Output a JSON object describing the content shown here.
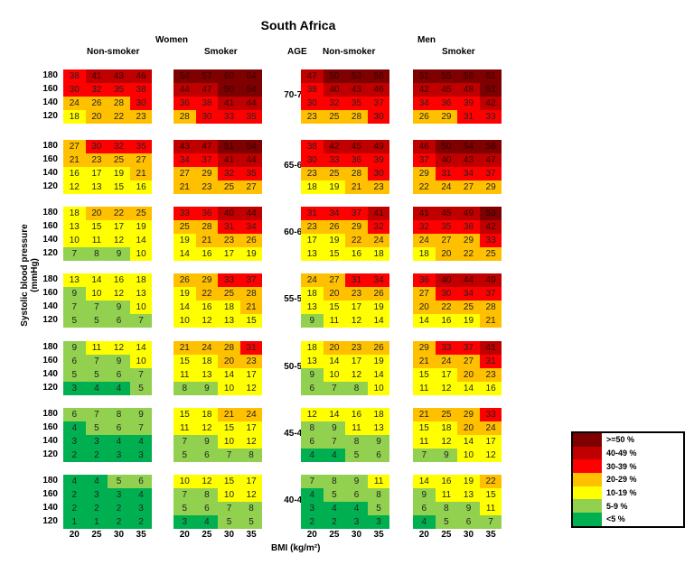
{
  "chart_data": {
    "type": "heatmap",
    "title": "South Africa",
    "group_labels": {
      "women": "Women",
      "men": "Men"
    },
    "panel_labels": [
      "Non-smoker",
      "Smoker",
      "Non-smoker",
      "Smoker"
    ],
    "age_header": "AGE",
    "ylabel": "Systolic blood pressure (mmHg)",
    "xlabel": "BMI (kg/m²)",
    "sbp_ticks": [
      "180",
      "160",
      "140",
      "120"
    ],
    "bmi_ticks": [
      "20",
      "25",
      "30",
      "35"
    ],
    "legend": [
      {
        "label": ">=50 %",
        "color": "#7f0000"
      },
      {
        "label": "40-49 %",
        "color": "#c00000"
      },
      {
        "label": "30-39 %",
        "color": "#ff0000"
      },
      {
        "label": "20-29 %",
        "color": "#ffc000"
      },
      {
        "label": "10-19 %",
        "color": "#ffff00"
      },
      {
        "label": "5-9 %",
        "color": "#92d050"
      },
      {
        "label": "<5 %",
        "color": "#00b050"
      }
    ],
    "bands": [
      {
        "age": "70-74",
        "panels": [
          [
            [
              38,
              41,
              43,
              46
            ],
            [
              30,
              32,
              35,
              38
            ],
            [
              24,
              26,
              28,
              30
            ],
            [
              18,
              20,
              22,
              23
            ]
          ],
          [
            [
              54,
              57,
              60,
              64
            ],
            [
              44,
              47,
              50,
              54
            ],
            [
              36,
              38,
              41,
              44
            ],
            [
              28,
              30,
              33,
              35
            ]
          ],
          [
            [
              47,
              50,
              53,
              56
            ],
            [
              38,
              40,
              43,
              46
            ],
            [
              30,
              32,
              35,
              37
            ],
            [
              23,
              25,
              28,
              30
            ]
          ],
          [
            [
              51,
              55,
              58,
              61
            ],
            [
              42,
              45,
              48,
              51
            ],
            [
              34,
              36,
              39,
              42
            ],
            [
              26,
              29,
              31,
              33
            ]
          ]
        ]
      },
      {
        "age": "65-69",
        "panels": [
          [
            [
              27,
              30,
              32,
              35
            ],
            [
              21,
              23,
              25,
              27
            ],
            [
              16,
              17,
              19,
              21
            ],
            [
              12,
              13,
              15,
              16
            ]
          ],
          [
            [
              43,
              47,
              51,
              54
            ],
            [
              34,
              37,
              41,
              44
            ],
            [
              27,
              29,
              32,
              35
            ],
            [
              21,
              23,
              25,
              27
            ]
          ],
          [
            [
              38,
              42,
              45,
              49
            ],
            [
              30,
              33,
              36,
              39
            ],
            [
              23,
              25,
              28,
              30
            ],
            [
              18,
              19,
              21,
              23
            ]
          ],
          [
            [
              46,
              50,
              54,
              58
            ],
            [
              37,
              40,
              43,
              47
            ],
            [
              29,
              31,
              34,
              37
            ],
            [
              22,
              24,
              27,
              29
            ]
          ]
        ]
      },
      {
        "age": "60-64",
        "panels": [
          [
            [
              18,
              20,
              22,
              25
            ],
            [
              13,
              15,
              17,
              19
            ],
            [
              10,
              11,
              12,
              14
            ],
            [
              7,
              8,
              9,
              10
            ]
          ],
          [
            [
              33,
              36,
              40,
              44
            ],
            [
              25,
              28,
              31,
              34
            ],
            [
              19,
              21,
              23,
              26
            ],
            [
              14,
              16,
              17,
              19
            ]
          ],
          [
            [
              31,
              34,
              37,
              41
            ],
            [
              23,
              26,
              29,
              32
            ],
            [
              17,
              19,
              22,
              24
            ],
            [
              13,
              15,
              16,
              18
            ]
          ],
          [
            [
              41,
              45,
              49,
              53
            ],
            [
              32,
              35,
              38,
              42
            ],
            [
              24,
              27,
              29,
              33
            ],
            [
              18,
              20,
              22,
              25
            ]
          ]
        ]
      },
      {
        "age": "55-59",
        "panels": [
          [
            [
              13,
              14,
              16,
              18
            ],
            [
              9,
              10,
              12,
              13
            ],
            [
              7,
              7,
              9,
              10
            ],
            [
              5,
              5,
              6,
              7
            ]
          ],
          [
            [
              26,
              29,
              33,
              37
            ],
            [
              19,
              22,
              25,
              28
            ],
            [
              14,
              16,
              18,
              21
            ],
            [
              10,
              12,
              13,
              15
            ]
          ],
          [
            [
              24,
              27,
              31,
              34
            ],
            [
              18,
              20,
              23,
              26
            ],
            [
              13,
              15,
              17,
              19
            ],
            [
              9,
              11,
              12,
              14
            ]
          ],
          [
            [
              36,
              40,
              44,
              49
            ],
            [
              27,
              30,
              34,
              37
            ],
            [
              20,
              22,
              25,
              28
            ],
            [
              14,
              16,
              19,
              21
            ]
          ]
        ]
      },
      {
        "age": "50-54",
        "panels": [
          [
            [
              9,
              11,
              12,
              14
            ],
            [
              6,
              7,
              9,
              10
            ],
            [
              5,
              5,
              6,
              7
            ],
            [
              3,
              4,
              4,
              5
            ]
          ],
          [
            [
              21,
              24,
              28,
              31
            ],
            [
              15,
              18,
              20,
              23
            ],
            [
              11,
              13,
              14,
              17
            ],
            [
              8,
              9,
              10,
              12
            ]
          ],
          [
            [
              18,
              20,
              23,
              26
            ],
            [
              13,
              14,
              17,
              19
            ],
            [
              9,
              10,
              12,
              14
            ],
            [
              6,
              7,
              8,
              10
            ]
          ],
          [
            [
              29,
              33,
              37,
              41
            ],
            [
              21,
              24,
              27,
              31
            ],
            [
              15,
              17,
              20,
              23
            ],
            [
              11,
              12,
              14,
              16
            ]
          ]
        ]
      },
      {
        "age": "45-49",
        "panels": [
          [
            [
              6,
              7,
              8,
              9
            ],
            [
              4,
              5,
              6,
              7
            ],
            [
              3,
              3,
              4,
              4
            ],
            [
              2,
              2,
              3,
              3
            ]
          ],
          [
            [
              15,
              18,
              21,
              24
            ],
            [
              11,
              12,
              15,
              17
            ],
            [
              7,
              9,
              10,
              12
            ],
            [
              5,
              6,
              7,
              8
            ]
          ],
          [
            [
              12,
              14,
              16,
              18
            ],
            [
              8,
              9,
              11,
              13
            ],
            [
              6,
              7,
              8,
              9
            ],
            [
              4,
              4,
              5,
              6
            ]
          ],
          [
            [
              21,
              25,
              29,
              33
            ],
            [
              15,
              18,
              20,
              24
            ],
            [
              11,
              12,
              14,
              17
            ],
            [
              7,
              9,
              10,
              12
            ]
          ]
        ]
      },
      {
        "age": "40-44",
        "panels": [
          [
            [
              4,
              4,
              5,
              6
            ],
            [
              2,
              3,
              3,
              4
            ],
            [
              2,
              2,
              2,
              3
            ],
            [
              1,
              1,
              2,
              2
            ]
          ],
          [
            [
              10,
              12,
              15,
              17
            ],
            [
              7,
              8,
              10,
              12
            ],
            [
              5,
              6,
              7,
              8
            ],
            [
              3,
              4,
              5,
              5
            ]
          ],
          [
            [
              7,
              8,
              9,
              11
            ],
            [
              4,
              5,
              6,
              8
            ],
            [
              3,
              4,
              4,
              5
            ],
            [
              2,
              2,
              3,
              3
            ]
          ],
          [
            [
              14,
              16,
              19,
              22
            ],
            [
              9,
              11,
              13,
              15
            ],
            [
              6,
              8,
              9,
              11
            ],
            [
              4,
              5,
              6,
              7
            ]
          ]
        ]
      }
    ]
  }
}
